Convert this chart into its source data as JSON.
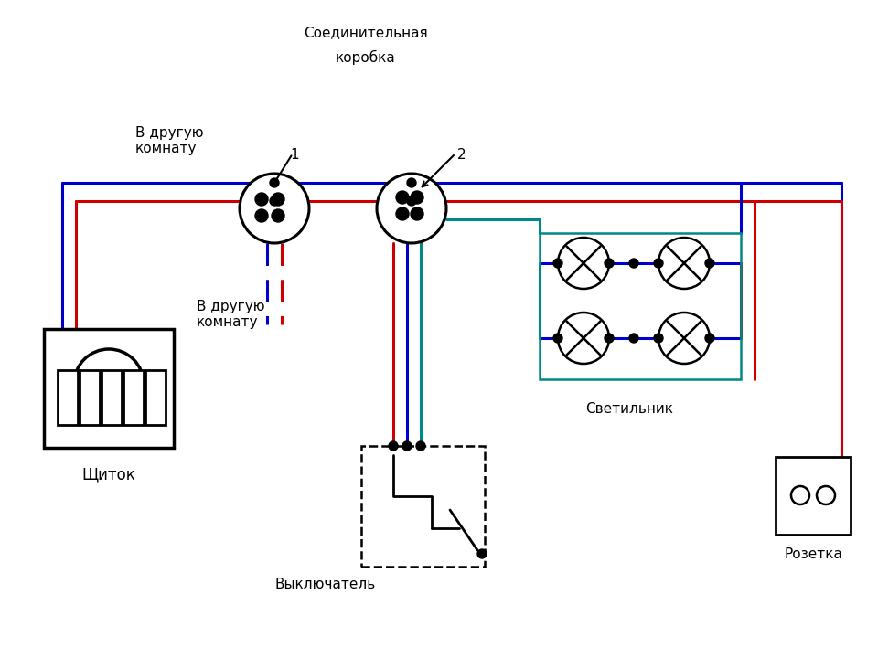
{
  "bg": "#ffffff",
  "red": "#cc0000",
  "blue": "#0000cc",
  "green": "#008888",
  "black": "#000000",
  "lw": 2.2,
  "labels": {
    "conn_line1": "Соединительная",
    "conn_line2": "коробка",
    "num1": "1",
    "num2": "2",
    "schitok": "Щиток",
    "svetilnik": "Светильник",
    "vykl": "Выключатель",
    "rozetka": "Розетка",
    "room_top": "В другую\nкомнату",
    "room_bot": "В другую\nкомнату"
  },
  "font_size": 11
}
